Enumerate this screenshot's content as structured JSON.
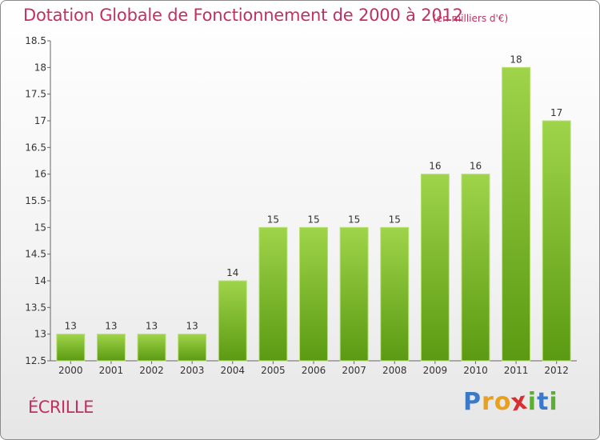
{
  "header": {
    "title": "Dotation Globale de Fonctionnement de 2000 à 2012",
    "subtitle": "(en milliers d'€)"
  },
  "footer": {
    "city": "ÉCRILLE",
    "logo_letters": [
      "P",
      "r",
      "o",
      "x",
      "i",
      "t",
      "i"
    ]
  },
  "colors": {
    "accent": "#c03060",
    "bar_top": "#9fd44a",
    "bar_bottom": "#5a9a12",
    "logo": [
      "#3b7ac8",
      "#e8a020",
      "#e8a020",
      "#d83030",
      "#5ab030",
      "#3b7ac8",
      "#5ab030"
    ]
  },
  "chart_data": {
    "type": "bar",
    "title": "Dotation Globale de Fonctionnement de 2000 à 2012",
    "subtitle": "(en milliers d'€)",
    "categories": [
      "2000",
      "2001",
      "2002",
      "2003",
      "2004",
      "2005",
      "2006",
      "2007",
      "2008",
      "2009",
      "2010",
      "2011",
      "2012"
    ],
    "values": [
      13,
      13,
      13,
      13,
      14,
      15,
      15,
      15,
      15,
      16,
      16,
      18,
      17
    ],
    "data_labels": [
      "13",
      "13",
      "13",
      "13",
      "14",
      "15",
      "15",
      "15",
      "15",
      "16",
      "16",
      "18",
      "17"
    ],
    "ylim": [
      12.5,
      18.5
    ],
    "yticks": [
      12.5,
      13,
      13.5,
      14,
      14.5,
      15,
      15.5,
      16,
      16.5,
      17,
      17.5,
      18,
      18.5
    ],
    "ytick_labels": [
      "12.5",
      "13",
      "13.5",
      "14",
      "14.5",
      "15",
      "15.5",
      "16",
      "16.5",
      "17",
      "17.5",
      "18",
      "18.5"
    ],
    "grid": false,
    "xlabel": "",
    "ylabel": ""
  }
}
